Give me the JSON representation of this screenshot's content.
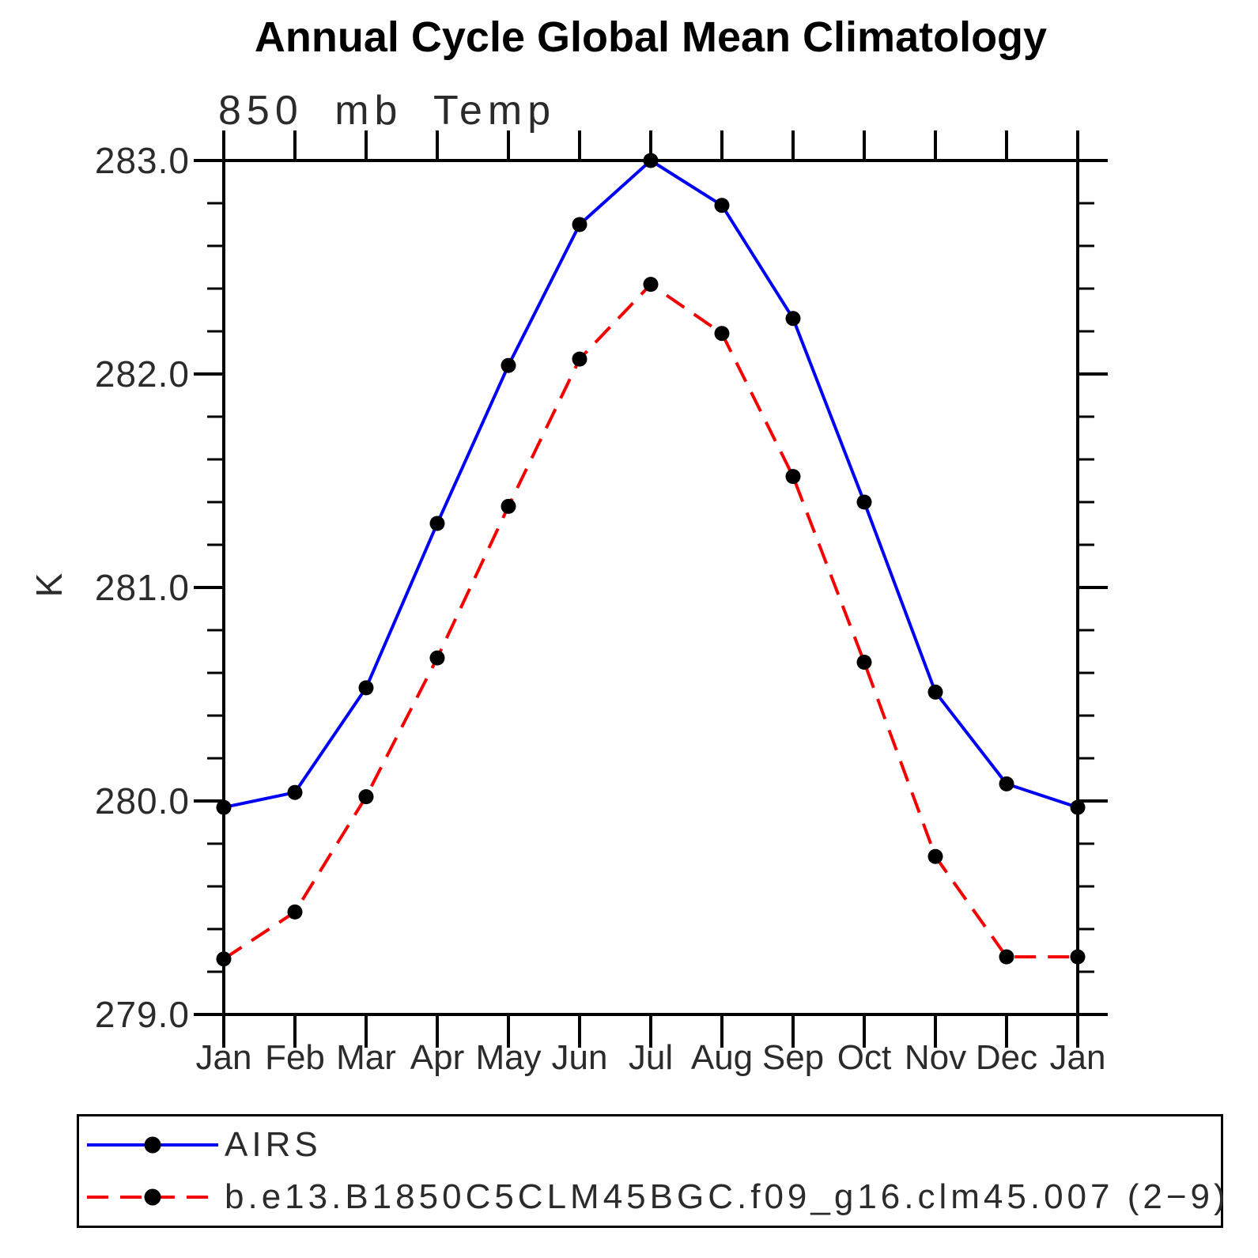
{
  "title": "Annual Cycle Global Mean Climatology",
  "subtitle": "850 mb Temp",
  "ylabel": "K",
  "chart_data": {
    "type": "line",
    "categories": [
      "Jan",
      "Feb",
      "Mar",
      "Apr",
      "May",
      "Jun",
      "Jul",
      "Aug",
      "Sep",
      "Oct",
      "Nov",
      "Dec",
      "Jan"
    ],
    "xlabel": "",
    "ylabel": "K",
    "ylim": [
      279.0,
      283.0
    ],
    "ytick_interval": 1.0,
    "ytick_minor_interval": 0.2,
    "ytick_labels": [
      "279.0",
      "280.0",
      "281.0",
      "282.0",
      "283.0"
    ],
    "grid": false,
    "legend_position": "bottom",
    "marker_color": "#000000",
    "series": [
      {
        "name": "AIRS",
        "color": "#0000f5",
        "line_style": "solid",
        "values": [
          279.97,
          280.04,
          280.53,
          281.3,
          282.04,
          282.7,
          283.0,
          282.79,
          282.26,
          281.4,
          280.51,
          280.08,
          279.97
        ]
      },
      {
        "name": "b.e13.B1850C5CLM45BGC.f09_g16.clm45.007 (2−9)",
        "color": "#f50000",
        "line_style": "dashed",
        "values": [
          279.26,
          279.48,
          280.02,
          280.67,
          281.38,
          282.07,
          282.42,
          282.19,
          281.52,
          280.65,
          279.74,
          279.27,
          279.27
        ]
      }
    ]
  }
}
